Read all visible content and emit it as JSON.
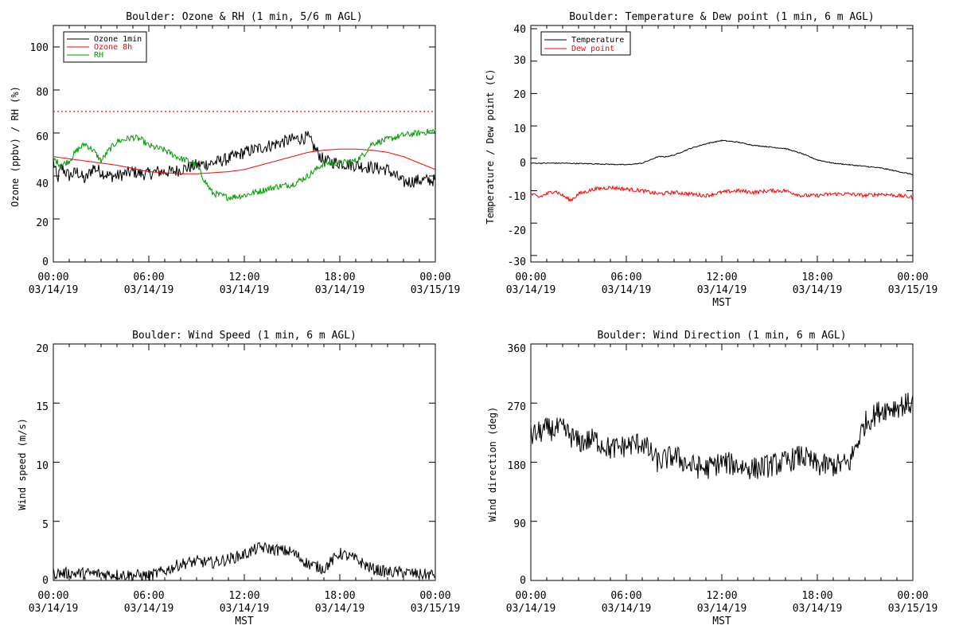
{
  "chart_data": [
    {
      "type": "line",
      "title": "Boulder: Ozone & RH (1 min, 5/6 m AGL)",
      "ylabel": "Ozone (ppbv) / RH (%)",
      "xlabel": "",
      "ylim": [
        0,
        110
      ],
      "yticks": [
        "0",
        "20",
        "40",
        "60",
        "80",
        "100"
      ],
      "xticks": [
        [
          "00:00",
          "03/14/19"
        ],
        [
          "06:00",
          "03/14/19"
        ],
        [
          "12:00",
          "03/14/19"
        ],
        [
          "18:00",
          "03/14/19"
        ],
        [
          "00:00",
          "03/15/19"
        ]
      ],
      "legend_position": "top-left",
      "reference_line": {
        "y": 70,
        "style": "dotted",
        "color": "#ff0000"
      },
      "series": [
        {
          "name": "Ozone 1min",
          "color": "#000000",
          "noise": 3,
          "x": [
            0,
            0.25,
            0.5,
            1,
            1.5,
            2,
            2.5,
            3,
            3.5,
            4,
            4.5,
            5,
            5.5,
            6,
            6.5,
            7,
            7.5,
            8,
            9,
            10,
            11,
            12,
            13,
            14,
            15,
            16,
            16.5,
            17,
            18,
            19,
            20,
            21,
            22,
            23,
            24
          ],
          "y": [
            47,
            38,
            44,
            40,
            42,
            38,
            44,
            42,
            40,
            40,
            41,
            42,
            41,
            41,
            42,
            42,
            42,
            43,
            45,
            46,
            48,
            51,
            53,
            55,
            57,
            58,
            52,
            47,
            46,
            45,
            44,
            43,
            37,
            38,
            38
          ]
        },
        {
          "name": "Ozone 8h",
          "color": "#ff0000",
          "noise": 0,
          "x": [
            0,
            2,
            4,
            6,
            8,
            9,
            10,
            11,
            12,
            13,
            14,
            15,
            16,
            17,
            18,
            19,
            20,
            21,
            22,
            23,
            24
          ],
          "y": [
            49,
            47,
            45,
            42,
            41,
            41,
            41.5,
            42,
            43,
            45,
            47,
            49,
            51,
            52,
            52.5,
            52.5,
            52,
            51,
            49,
            46,
            43
          ]
        },
        {
          "name": "RH",
          "color": "#009900",
          "noise": 1.5,
          "x": [
            0,
            0.5,
            1,
            1.5,
            2,
            2.5,
            3,
            3.5,
            4,
            4.5,
            5,
            5.5,
            6,
            6.5,
            7,
            7.5,
            8,
            8.5,
            9,
            9.5,
            10,
            11,
            12,
            13,
            14,
            15,
            16,
            17,
            18,
            19,
            19.5,
            20,
            21,
            22,
            23,
            24
          ],
          "y": [
            48,
            45,
            47,
            52,
            55,
            52,
            47,
            52,
            56,
            57,
            58,
            57,
            54,
            53,
            52,
            50,
            48,
            47,
            45,
            38,
            32,
            30,
            31,
            33,
            35,
            36,
            40,
            46,
            46,
            47,
            50,
            55,
            57,
            59,
            60,
            61
          ]
        }
      ]
    },
    {
      "type": "line",
      "title": "Boulder: Temperature & Dew point (1 min, 6 m AGL)",
      "ylabel": "Temperature / Dew point (C)",
      "xlabel": "MST",
      "ylim": [
        -32,
        41
      ],
      "yticks": [
        "-30",
        "-20",
        "-10",
        "0",
        "10",
        "20",
        "30",
        "40"
      ],
      "xticks": [
        [
          "00:00",
          "03/14/19"
        ],
        [
          "06:00",
          "03/14/19"
        ],
        [
          "12:00",
          "03/14/19"
        ],
        [
          "18:00",
          "03/14/19"
        ],
        [
          "00:00",
          "03/15/19"
        ]
      ],
      "legend_position": "top-left",
      "series": [
        {
          "name": "Temperature",
          "color": "#000000",
          "noise": 0.15,
          "x": [
            0,
            2,
            4,
            6,
            7,
            7.5,
            8,
            8.5,
            9,
            10,
            11,
            12,
            13,
            14,
            15,
            16,
            17,
            18,
            19,
            20,
            21,
            22,
            23,
            24
          ],
          "y": [
            -1.5,
            -1.5,
            -1.7,
            -2,
            -1.5,
            -0.5,
            0.5,
            0.5,
            1,
            3,
            4.5,
            5.5,
            5,
            4,
            3.5,
            3,
            1.5,
            -0.5,
            -1.5,
            -2,
            -2.5,
            -3,
            -4,
            -5
          ]
        },
        {
          "name": "Dew point",
          "color": "#ff0000",
          "noise": 0.6,
          "x": [
            0,
            0.5,
            1,
            1.5,
            2,
            2.5,
            3,
            4,
            5,
            6,
            7,
            8,
            9,
            10,
            11,
            12,
            13,
            14,
            15,
            16,
            17,
            18,
            19,
            20,
            21,
            22,
            23,
            24
          ],
          "y": [
            -11,
            -12,
            -11,
            -10,
            -11.5,
            -13,
            -11,
            -9.5,
            -9,
            -9.5,
            -10,
            -11,
            -10.5,
            -11,
            -11.5,
            -10.5,
            -10,
            -10.5,
            -10,
            -10,
            -11.5,
            -11.5,
            -11,
            -11,
            -11.5,
            -11,
            -11.5,
            -12
          ]
        }
      ]
    },
    {
      "type": "line",
      "title": "Boulder: Wind Speed (1 min, 6 m AGL)",
      "ylabel": "Wind speed (m/s)",
      "xlabel": "MST",
      "ylim": [
        0,
        20
      ],
      "yticks": [
        "0",
        "5",
        "10",
        "15",
        "20"
      ],
      "xticks": [
        [
          "00:00",
          "03/14/19"
        ],
        [
          "06:00",
          "03/14/19"
        ],
        [
          "12:00",
          "03/14/19"
        ],
        [
          "18:00",
          "03/14/19"
        ],
        [
          "00:00",
          "03/15/19"
        ]
      ],
      "series": [
        {
          "color": "#000000",
          "noise": 0.5,
          "floor": 0,
          "x": [
            0,
            2,
            4,
            6,
            7,
            8,
            9,
            10,
            11,
            12,
            13,
            14,
            15,
            16,
            17,
            18,
            19,
            20,
            21,
            22,
            23,
            24
          ],
          "y": [
            0.6,
            0.6,
            0.5,
            0.4,
            0.8,
            1.4,
            1.6,
            1.5,
            1.8,
            2.2,
            2.8,
            2.6,
            2.4,
            1.4,
            1.0,
            2.3,
            1.8,
            1.0,
            0.7,
            0.7,
            0.5,
            0.5
          ]
        }
      ]
    },
    {
      "type": "line",
      "title": "Boulder: Wind Direction (1 min, 6 m AGL)",
      "ylabel": "Wind direction (deg)",
      "xlabel": "MST",
      "ylim": [
        0,
        360
      ],
      "yticks": [
        "0",
        "90",
        "180",
        "270",
        "360"
      ],
      "xticks": [
        [
          "00:00",
          "03/14/19"
        ],
        [
          "06:00",
          "03/14/19"
        ],
        [
          "12:00",
          "03/14/19"
        ],
        [
          "18:00",
          "03/14/19"
        ],
        [
          "00:00",
          "03/15/19"
        ]
      ],
      "series": [
        {
          "color": "#000000",
          "noise": 18,
          "floor": 0,
          "ceil": 360,
          "x": [
            0,
            1,
            2,
            3,
            4,
            5,
            6,
            7,
            8,
            9,
            10,
            11,
            12,
            13,
            14,
            15,
            16,
            17,
            18,
            19,
            20,
            21,
            22,
            23,
            24
          ],
          "y": [
            220,
            230,
            230,
            210,
            215,
            200,
            205,
            210,
            180,
            190,
            175,
            170,
            180,
            175,
            170,
            175,
            180,
            190,
            175,
            175,
            178,
            240,
            260,
            265,
            270
          ]
        }
      ]
    }
  ],
  "legends": [
    [
      "Ozone 1min",
      "Ozone 8h",
      "RH"
    ],
    [
      "Temperature",
      "Dew point"
    ]
  ]
}
